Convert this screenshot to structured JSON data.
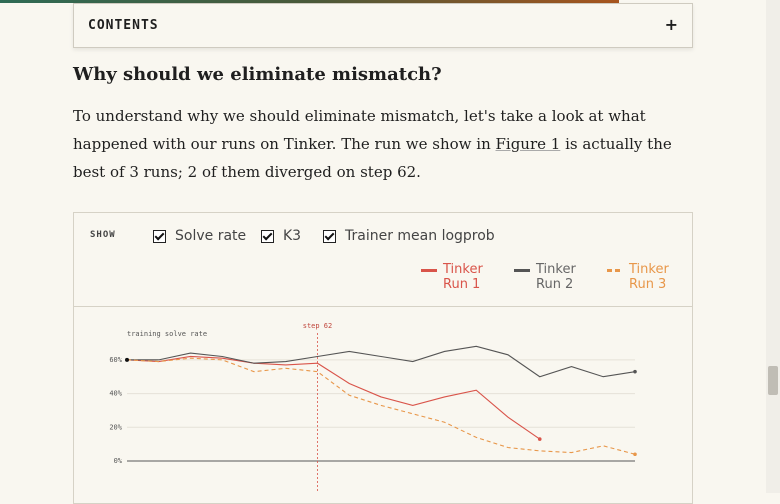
{
  "contents": {
    "label": "CONTENTS",
    "toggle": "+"
  },
  "heading": "Why should we eliminate mismatch?",
  "paragraph": {
    "before": "To understand why we should eliminate mismatch, let's take a look at what happened with our runs on Tinker. The run we show in ",
    "link": "Figure 1",
    "after": " is actually the best of 3 runs; 2 of them diverged on step 62."
  },
  "controls": {
    "label": "SHOW",
    "options": [
      "Solve rate",
      "K3",
      "Trainer mean logprob"
    ]
  },
  "chart_data": {
    "type": "line",
    "title": "training solve rate",
    "annotation": "step 62",
    "categories": [
      null,
      null,
      null,
      null,
      null,
      null,
      null,
      null,
      null,
      null,
      null,
      null,
      null,
      null,
      null,
      null,
      null
    ],
    "series": [
      {
        "name": "Tinker Run 1",
        "color": "#d9544a",
        "values": [
          60,
          59,
          62,
          61,
          58,
          57,
          58,
          46,
          38,
          33,
          38,
          42,
          26,
          13,
          null,
          null,
          null
        ]
      },
      {
        "name": "Tinker Run 2",
        "color": "#555555",
        "values": [
          60,
          60,
          64,
          62,
          58,
          59,
          62,
          65,
          62,
          59,
          65,
          68,
          63,
          50,
          56,
          50,
          53
        ]
      },
      {
        "name": "Tinker Run 3",
        "color": "#e8974a",
        "dashed": true,
        "values": [
          60,
          59,
          61,
          60,
          53,
          55,
          53,
          39,
          33,
          28,
          23,
          14,
          8,
          6,
          5,
          9,
          4
        ]
      }
    ],
    "ylim": [
      0,
      70
    ],
    "yticks": [
      {
        "value": 0,
        "label": "0%"
      },
      {
        "value": 20,
        "label": "20%"
      },
      {
        "value": 40,
        "label": "40%"
      },
      {
        "value": 60,
        "label": "60%"
      }
    ],
    "grid": true
  }
}
